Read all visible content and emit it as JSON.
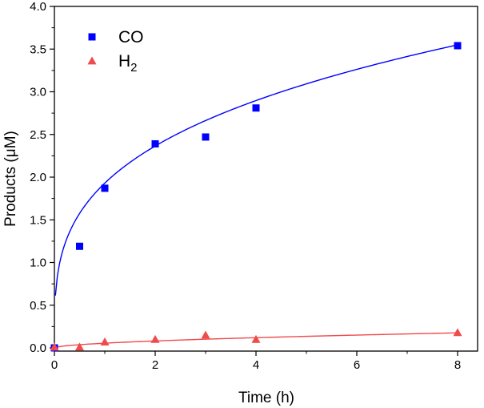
{
  "chart_data": {
    "type": "scatter",
    "title": "",
    "xlabel": "Time (h)",
    "ylabel": "Products (μM)",
    "xlim": [
      0,
      8
    ],
    "ylim": [
      0,
      4.0
    ],
    "xticks": [
      "0",
      "2",
      "4",
      "6",
      "8"
    ],
    "yticks": [
      "0.0",
      "0.5",
      "1.0",
      "1.5",
      "2.0",
      "2.5",
      "3.0",
      "3.5",
      "4.0"
    ],
    "grid": false,
    "legend_position": "top-left",
    "series": [
      {
        "name": "CO",
        "legend_main": "CO",
        "legend_sub": "",
        "marker": "square",
        "color": "#0000ff",
        "x": [
          0,
          0.5,
          1,
          2,
          3,
          4,
          8
        ],
        "y": [
          0.0,
          1.19,
          1.87,
          2.39,
          2.47,
          2.81,
          3.54
        ],
        "fit": {
          "model": "power",
          "a": 1.93,
          "b": 0.293,
          "x_start": 0.02
        }
      },
      {
        "name": "H2",
        "legend_main": "H",
        "legend_sub": "2",
        "marker": "triangle",
        "color": "#f04a4a",
        "x": [
          0,
          0.5,
          1,
          2,
          3,
          4,
          8
        ],
        "y": [
          0.01,
          0.01,
          0.07,
          0.1,
          0.15,
          0.1,
          0.18
        ],
        "fit": {
          "model": "power",
          "a": 0.055,
          "b": 0.56,
          "x_start": 0.02
        }
      }
    ]
  }
}
